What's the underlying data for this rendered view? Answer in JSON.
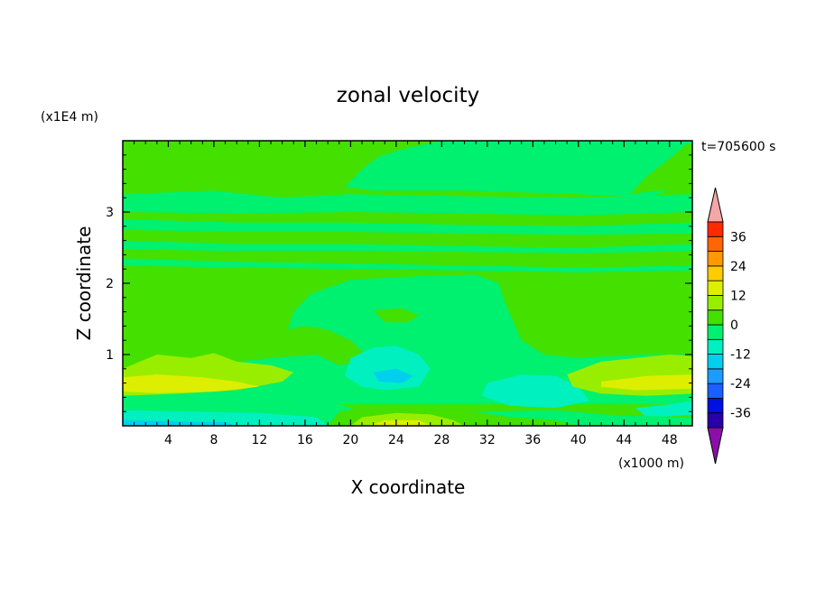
{
  "chart_data": {
    "type": "heatmap",
    "title": "zonal velocity",
    "xlabel": "X coordinate",
    "ylabel": "Z coordinate",
    "x_unit_label": "(x1000 m)",
    "y_unit_label": "(x1E4 m)",
    "time_label": "t=705600 s",
    "xlim": [
      0,
      50
    ],
    "ylim": [
      0,
      4
    ],
    "x_ticks": [
      4,
      8,
      12,
      16,
      20,
      24,
      28,
      32,
      36,
      40,
      44,
      48
    ],
    "y_ticks": [
      1,
      2,
      3
    ],
    "colorbar": {
      "levels": [
        -42,
        -36,
        -30,
        -24,
        -18,
        -12,
        -6,
        0,
        6,
        12,
        18,
        24,
        30,
        36,
        42
      ],
      "tick_labels": [
        -36,
        -24,
        -12,
        0,
        12,
        24,
        36
      ],
      "colors": [
        "#6a0fa3",
        "#2a00a8",
        "#0010e0",
        "#1c5fff",
        "#1e9bff",
        "#00cfee",
        "#00f0c0",
        "#00f070",
        "#44e000",
        "#99ee00",
        "#ddee00",
        "#ffcc00",
        "#ff9900",
        "#ff6600",
        "#ff2a00",
        "#e0100a"
      ],
      "under_color": "#8a0fa8",
      "over_color": "#f4a7a7"
    },
    "background_value": 3,
    "regions": [
      {
        "value": -3,
        "points": [
          [
            0,
            3.25
          ],
          [
            8,
            3.3
          ],
          [
            14,
            3.2
          ],
          [
            20,
            3.25
          ],
          [
            30,
            3.22
          ],
          [
            40,
            3.2
          ],
          [
            50,
            3.25
          ],
          [
            50,
            3.0
          ],
          [
            40,
            2.95
          ],
          [
            30,
            2.98
          ],
          [
            20,
            3.0
          ],
          [
            10,
            2.98
          ],
          [
            0,
            3.0
          ]
        ]
      },
      {
        "value": -3,
        "points": [
          [
            0,
            2.9
          ],
          [
            10,
            2.85
          ],
          [
            20,
            2.85
          ],
          [
            30,
            2.82
          ],
          [
            40,
            2.8
          ],
          [
            50,
            2.85
          ],
          [
            50,
            2.7
          ],
          [
            40,
            2.68
          ],
          [
            30,
            2.7
          ],
          [
            20,
            2.72
          ],
          [
            10,
            2.72
          ],
          [
            0,
            2.75
          ]
        ]
      },
      {
        "value": -3,
        "points": [
          [
            0,
            2.6
          ],
          [
            10,
            2.55
          ],
          [
            20,
            2.55
          ],
          [
            30,
            2.52
          ],
          [
            40,
            2.5
          ],
          [
            50,
            2.55
          ],
          [
            50,
            2.45
          ],
          [
            40,
            2.42
          ],
          [
            30,
            2.44
          ],
          [
            20,
            2.45
          ],
          [
            10,
            2.45
          ],
          [
            0,
            2.48
          ]
        ]
      },
      {
        "value": -3,
        "points": [
          [
            0,
            2.35
          ],
          [
            10,
            2.3
          ],
          [
            20,
            2.28
          ],
          [
            30,
            2.25
          ],
          [
            40,
            2.22
          ],
          [
            50,
            2.25
          ],
          [
            50,
            2.18
          ],
          [
            40,
            2.15
          ],
          [
            30,
            2.18
          ],
          [
            20,
            2.2
          ],
          [
            10,
            2.22
          ],
          [
            0,
            2.25
          ]
        ]
      },
      {
        "value": -3,
        "points": [
          [
            19.5,
            3.35
          ],
          [
            21,
            3.6
          ],
          [
            22.5,
            3.78
          ],
          [
            25,
            3.9
          ],
          [
            28,
            4.0
          ],
          [
            50,
            4.0
          ],
          [
            50,
            3.35
          ],
          [
            48,
            3.3
          ],
          [
            46,
            3.2
          ],
          [
            40,
            3.25
          ],
          [
            30,
            3.3
          ],
          [
            22,
            3.3
          ]
        ]
      },
      {
        "value": 3,
        "points": [
          [
            44.5,
            3.25
          ],
          [
            46,
            3.5
          ],
          [
            48,
            3.75
          ],
          [
            49.5,
            3.95
          ],
          [
            50,
            3.95
          ],
          [
            50,
            3.3
          ],
          [
            47,
            3.3
          ]
        ]
      },
      {
        "value": -3,
        "points": [
          [
            16.5,
            1.85
          ],
          [
            20,
            2.05
          ],
          [
            26,
            2.1
          ],
          [
            31,
            2.12
          ],
          [
            33,
            2.0
          ],
          [
            33.5,
            1.75
          ],
          [
            35,
            1.2
          ],
          [
            37,
            1.0
          ],
          [
            40,
            0.95
          ],
          [
            43,
            0.98
          ],
          [
            46,
            1.0
          ],
          [
            50,
            1.0
          ],
          [
            50,
            0.3
          ],
          [
            0,
            0.3
          ],
          [
            0,
            0.8
          ],
          [
            10,
            0.9
          ],
          [
            13,
            0.95
          ],
          [
            17,
            1.0
          ],
          [
            19,
            0.85
          ],
          [
            20.5,
            0.9
          ],
          [
            21,
            1.05
          ],
          [
            20,
            1.2
          ],
          [
            18,
            1.35
          ],
          [
            16,
            1.4
          ],
          [
            14.5,
            1.35
          ],
          [
            15,
            1.6
          ]
        ]
      },
      {
        "value": 3,
        "points": [
          [
            22,
            1.62
          ],
          [
            24.5,
            1.65
          ],
          [
            26,
            1.55
          ],
          [
            25,
            1.45
          ],
          [
            23,
            1.45
          ]
        ]
      },
      {
        "value": -9,
        "points": [
          [
            20,
            0.95
          ],
          [
            22,
            1.1
          ],
          [
            24,
            1.12
          ],
          [
            26,
            1.0
          ],
          [
            27,
            0.8
          ],
          [
            26,
            0.55
          ],
          [
            23,
            0.5
          ],
          [
            21,
            0.55
          ],
          [
            19.5,
            0.7
          ]
        ]
      },
      {
        "value": -9,
        "points": [
          [
            32,
            0.6
          ],
          [
            35,
            0.72
          ],
          [
            38,
            0.7
          ],
          [
            40,
            0.55
          ],
          [
            41,
            0.35
          ],
          [
            38,
            0.25
          ],
          [
            34,
            0.28
          ],
          [
            31.5,
            0.42
          ]
        ]
      },
      {
        "value": -9,
        "points": [
          [
            45,
            0.25
          ],
          [
            48,
            0.3
          ],
          [
            50,
            0.35
          ],
          [
            50,
            0.15
          ],
          [
            46,
            0.12
          ]
        ]
      },
      {
        "value": -15,
        "points": [
          [
            22,
            0.75
          ],
          [
            24,
            0.8
          ],
          [
            25.5,
            0.7
          ],
          [
            24.5,
            0.6
          ],
          [
            22.5,
            0.62
          ]
        ]
      },
      {
        "value": 9,
        "points": [
          [
            0,
            0.8
          ],
          [
            3,
            1.0
          ],
          [
            6,
            0.95
          ],
          [
            8,
            1.02
          ],
          [
            10,
            0.9
          ],
          [
            13,
            0.85
          ],
          [
            15,
            0.75
          ],
          [
            14,
            0.62
          ],
          [
            10,
            0.5
          ],
          [
            5,
            0.45
          ],
          [
            0,
            0.42
          ]
        ]
      },
      {
        "value": 15,
        "points": [
          [
            0,
            0.68
          ],
          [
            3,
            0.72
          ],
          [
            7,
            0.68
          ],
          [
            10,
            0.62
          ],
          [
            12,
            0.55
          ],
          [
            8,
            0.48
          ],
          [
            3,
            0.46
          ],
          [
            0,
            0.48
          ]
        ]
      },
      {
        "value": 9,
        "points": [
          [
            39,
            0.72
          ],
          [
            42,
            0.9
          ],
          [
            45,
            0.95
          ],
          [
            48,
            1.0
          ],
          [
            50,
            0.98
          ],
          [
            50,
            0.45
          ],
          [
            46,
            0.42
          ],
          [
            42,
            0.45
          ],
          [
            39.5,
            0.55
          ]
        ]
      },
      {
        "value": 15,
        "points": [
          [
            42,
            0.62
          ],
          [
            46,
            0.7
          ],
          [
            50,
            0.72
          ],
          [
            50,
            0.52
          ],
          [
            45,
            0.5
          ],
          [
            42,
            0.55
          ]
        ]
      },
      {
        "value": -3,
        "points": [
          [
            0,
            0.42
          ],
          [
            8,
            0.42
          ],
          [
            14,
            0.38
          ],
          [
            19,
            0.3
          ],
          [
            21,
            0.2
          ],
          [
            24,
            0.18
          ],
          [
            30,
            0.2
          ],
          [
            38,
            0.22
          ],
          [
            43,
            0.15
          ],
          [
            50,
            0.12
          ],
          [
            50,
            0.0
          ],
          [
            0,
            0.0
          ]
        ]
      },
      {
        "value": -9,
        "points": [
          [
            0,
            0.22
          ],
          [
            6,
            0.2
          ],
          [
            12,
            0.18
          ],
          [
            17,
            0.12
          ],
          [
            18,
            0.0
          ],
          [
            0,
            0.0
          ]
        ]
      },
      {
        "value": -15,
        "points": [
          [
            0,
            0.08
          ],
          [
            5,
            0.06
          ],
          [
            9,
            0.05
          ],
          [
            10,
            0.0
          ],
          [
            0,
            0.0
          ]
        ]
      },
      {
        "value": 3,
        "points": [
          [
            18,
            0.0
          ],
          [
            19,
            0.2
          ],
          [
            22,
            0.28
          ],
          [
            26,
            0.3
          ],
          [
            30,
            0.22
          ],
          [
            34,
            0.12
          ],
          [
            38,
            0.08
          ],
          [
            40,
            0.0
          ]
        ]
      },
      {
        "value": 9,
        "points": [
          [
            20,
            0.0
          ],
          [
            21,
            0.12
          ],
          [
            24,
            0.18
          ],
          [
            27,
            0.16
          ],
          [
            29,
            0.08
          ],
          [
            30,
            0.0
          ]
        ]
      },
      {
        "value": 15,
        "points": [
          [
            21.5,
            0.0
          ],
          [
            23,
            0.08
          ],
          [
            26,
            0.08
          ],
          [
            27,
            0.0
          ]
        ]
      }
    ]
  }
}
